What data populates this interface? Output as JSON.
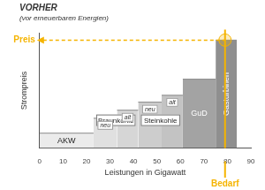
{
  "chart_data": {
    "type": "bar",
    "title": "VORHER",
    "subtitle": "(vor erneuerbaren Energien)",
    "x_label": "Leistungen in Gigawatt",
    "y_label": "Strompreis",
    "xlim": [
      0,
      90
    ],
    "xticks": [
      0,
      10,
      20,
      30,
      40,
      50,
      60,
      70,
      80,
      90
    ],
    "ylim": [
      0,
      100
    ],
    "tick_labels": "x",
    "grid": false,
    "groups": [
      {
        "name": "AKW",
        "segments": [
          {
            "x": [
              0,
              23
            ],
            "value": 13,
            "color": "#ebebeb"
          }
        ]
      },
      {
        "name": "Braunkohle",
        "segments": [
          {
            "label": "neu",
            "x": [
              23,
              33
            ],
            "value": 26,
            "color": "#e0e0e0"
          },
          {
            "label": "alt",
            "x": [
              33,
              42
            ],
            "value": 33,
            "color": "#d6d6d6"
          }
        ]
      },
      {
        "name": "Steinkohle",
        "segments": [
          {
            "label": "neu",
            "x": [
              42,
              52
            ],
            "value": 40,
            "color": "#cdcdcd"
          },
          {
            "label": "alt",
            "x": [
              52,
              61
            ],
            "value": 46,
            "color": "#c3c3c3"
          }
        ]
      },
      {
        "name": "GuD",
        "segments": [
          {
            "x": [
              61,
              75
            ],
            "value": 60,
            "color": "#a3a3a3"
          }
        ]
      },
      {
        "name": "Gasturbinen",
        "segments": [
          {
            "x": [
              75,
              84
            ],
            "value": 94,
            "color": "#8f8f8f"
          }
        ]
      }
    ],
    "annotations": [
      {
        "text": "Preis",
        "y": 94,
        "color": "#f5b400"
      },
      {
        "text": "Bedarf",
        "x": 79,
        "color": "#f5b400"
      }
    ]
  }
}
